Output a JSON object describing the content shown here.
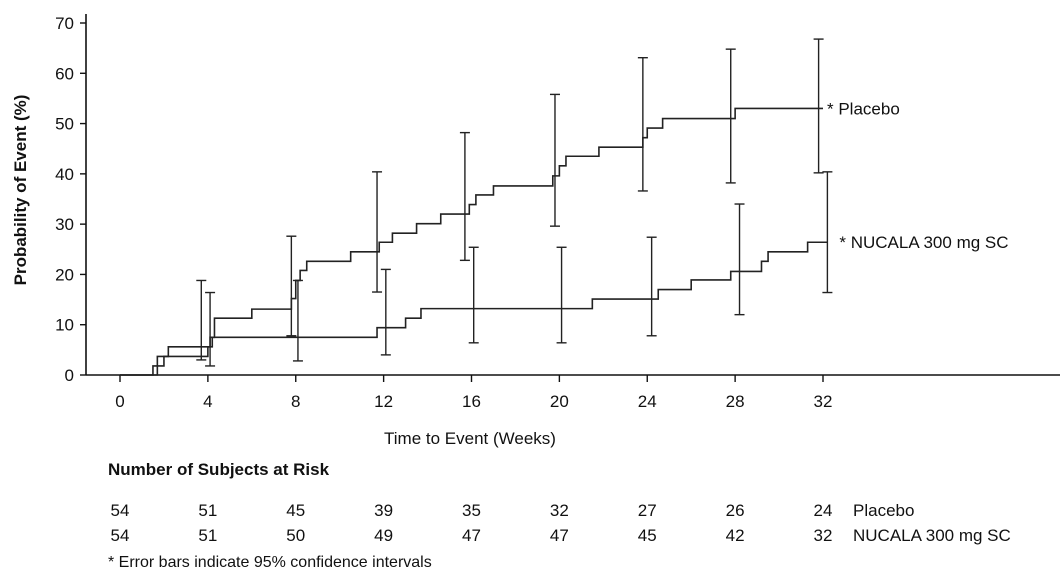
{
  "chart_data": {
    "type": "line",
    "xlabel": "Time to Event (Weeks)",
    "ylabel": "Probability of Event (%)",
    "xlim": [
      0,
      32
    ],
    "ylim": [
      0,
      70
    ],
    "xticks": [
      "0",
      "4",
      "8",
      "12",
      "16",
      "20",
      "24",
      "28",
      "32"
    ],
    "yticks": [
      "0",
      "10",
      "20",
      "30",
      "40",
      "50",
      "60",
      "70"
    ],
    "series": [
      {
        "name": "* Placebo",
        "color": "#222222",
        "steps": [
          [
            0,
            0
          ],
          [
            1.7,
            3.7
          ],
          [
            2.2,
            5.6
          ],
          [
            4.1,
            7.5
          ],
          [
            4.3,
            11.3
          ],
          [
            6,
            13.1
          ],
          [
            7.8,
            15.2
          ],
          [
            8.0,
            18.8
          ],
          [
            8.2,
            20.8
          ],
          [
            8.5,
            22.6
          ],
          [
            10.5,
            24.5
          ],
          [
            11.8,
            26.4
          ],
          [
            12.4,
            28.2
          ],
          [
            13.5,
            30.1
          ],
          [
            14.6,
            32.0
          ],
          [
            15.9,
            33.9
          ],
          [
            16.2,
            35.8
          ],
          [
            17.0,
            37.6
          ],
          [
            19.7,
            39.6
          ],
          [
            20.0,
            41.6
          ],
          [
            20.3,
            43.5
          ],
          [
            21.8,
            45.3
          ],
          [
            23.8,
            47.2
          ],
          [
            24.0,
            49.1
          ],
          [
            24.7,
            51.0
          ],
          [
            28.0,
            53.0
          ],
          [
            32.0,
            53.0
          ]
        ],
        "error_bars": [
          {
            "x": 3.7,
            "low": 3.0,
            "high": 18.8
          },
          {
            "x": 7.8,
            "low": 7.8,
            "high": 27.6
          },
          {
            "x": 11.7,
            "low": 16.5,
            "high": 40.4
          },
          {
            "x": 15.7,
            "low": 22.8,
            "high": 48.2
          },
          {
            "x": 19.8,
            "low": 29.6,
            "high": 55.8
          },
          {
            "x": 23.8,
            "low": 36.6,
            "high": 63.1
          },
          {
            "x": 27.8,
            "low": 38.2,
            "high": 64.8
          },
          {
            "x": 31.8,
            "low": 40.2,
            "high": 66.8
          }
        ]
      },
      {
        "name": "* NUCALA 300 mg SC",
        "color": "#222222",
        "steps": [
          [
            0,
            0
          ],
          [
            1.5,
            1.8
          ],
          [
            2.0,
            3.7
          ],
          [
            4.0,
            5.6
          ],
          [
            4.2,
            7.5
          ],
          [
            11.7,
            9.4
          ],
          [
            13.0,
            11.3
          ],
          [
            13.7,
            13.2
          ],
          [
            21.5,
            15.1
          ],
          [
            24.5,
            17.0
          ],
          [
            26.0,
            18.9
          ],
          [
            27.8,
            20.6
          ],
          [
            29.2,
            22.6
          ],
          [
            29.5,
            24.5
          ],
          [
            31.3,
            26.4
          ],
          [
            32.2,
            26.4
          ]
        ],
        "error_bars": [
          {
            "x": 4.1,
            "low": 1.8,
            "high": 16.4
          },
          {
            "x": 8.1,
            "low": 2.8,
            "high": 18.8
          },
          {
            "x": 12.1,
            "low": 4.0,
            "high": 21.0
          },
          {
            "x": 16.1,
            "low": 6.4,
            "high": 25.4
          },
          {
            "x": 20.1,
            "low": 6.4,
            "high": 25.4
          },
          {
            "x": 24.2,
            "low": 7.8,
            "high": 27.4
          },
          {
            "x": 28.2,
            "low": 12.0,
            "high": 34.0
          },
          {
            "x": 32.2,
            "low": 16.4,
            "high": 40.4
          }
        ]
      }
    ]
  },
  "risk_table": {
    "title": "Number of Subjects at Risk",
    "rows": [
      {
        "name": "Placebo",
        "values": [
          "54",
          "51",
          "45",
          "39",
          "35",
          "32",
          "27",
          "26",
          "24"
        ]
      },
      {
        "name": "NUCALA 300 mg SC",
        "values": [
          "54",
          "51",
          "50",
          "49",
          "47",
          "47",
          "45",
          "42",
          "32"
        ]
      }
    ]
  },
  "footnote": "* Error bars indicate 95% confidence intervals"
}
